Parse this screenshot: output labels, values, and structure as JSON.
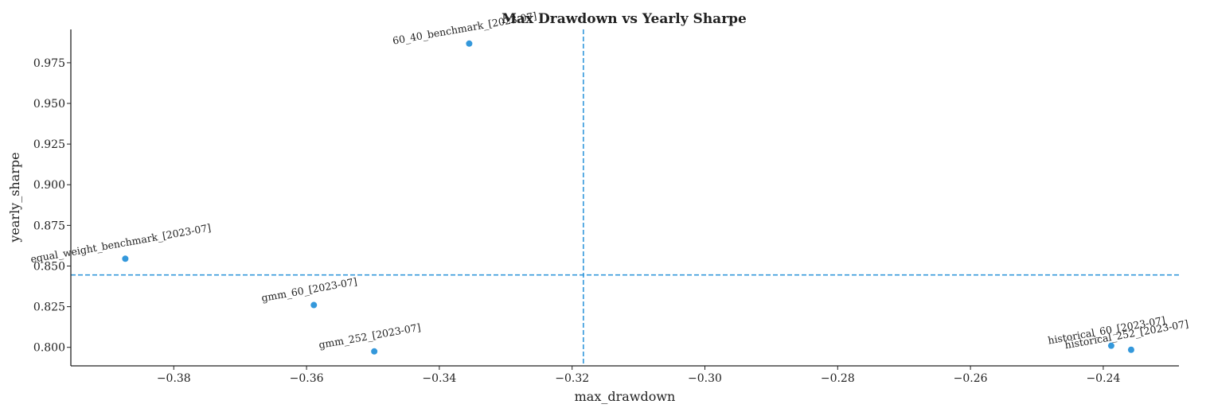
{
  "chart_data": {
    "type": "scatter",
    "title": "Max Drawdown vs Yearly Sharpe",
    "xlabel": "max_drawdown",
    "ylabel": "yearly_sharpe",
    "xlim": [
      -0.3955,
      -0.2286
    ],
    "ylim": [
      0.7886,
      0.9955
    ],
    "xticks": [
      -0.38,
      -0.36,
      -0.34,
      -0.32,
      -0.3,
      -0.28,
      -0.26,
      -0.24
    ],
    "xtick_labels": [
      "−0.38",
      "−0.36",
      "−0.34",
      "−0.32",
      "−0.30",
      "−0.28",
      "−0.26",
      "−0.24"
    ],
    "yticks": [
      0.8,
      0.825,
      0.85,
      0.875,
      0.9,
      0.925,
      0.95,
      0.975
    ],
    "ytick_labels": [
      "0.800",
      "0.825",
      "0.850",
      "0.875",
      "0.900",
      "0.925",
      "0.950",
      "0.975"
    ],
    "grid": false,
    "point_color": "#3498db",
    "reference_line_color": "#3498db",
    "reference_lines": {
      "x": -0.3183,
      "y": 0.8445
    },
    "points": [
      {
        "label": "60_40_benchmark_[2023-07]",
        "x": -0.3355,
        "y": 0.9868
      },
      {
        "label": "equal_weight_benchmark_[2023-07]",
        "x": -0.3873,
        "y": 0.8545
      },
      {
        "label": "gmm_60_[2023-07]",
        "x": -0.3589,
        "y": 0.826
      },
      {
        "label": "gmm_252_[2023-07]",
        "x": -0.3498,
        "y": 0.7975
      },
      {
        "label": "historical_60_[2023-07]",
        "x": -0.2388,
        "y": 0.801
      },
      {
        "label": "historical_252_[2023-07]",
        "x": -0.2358,
        "y": 0.7985
      }
    ]
  }
}
